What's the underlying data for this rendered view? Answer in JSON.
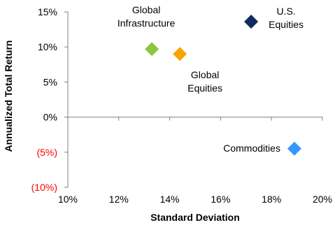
{
  "chart_data": {
    "type": "scatter",
    "xlabel": "Standard Deviation",
    "ylabel": "Annualized Total Return",
    "xlim": [
      0.1,
      0.2
    ],
    "ylim": [
      -0.1,
      0.15
    ],
    "x_ticks": [
      {
        "value": 0.1,
        "label": "10%"
      },
      {
        "value": 0.12,
        "label": "12%"
      },
      {
        "value": 0.14,
        "label": "14%"
      },
      {
        "value": 0.16,
        "label": "16%"
      },
      {
        "value": 0.18,
        "label": "18%"
      },
      {
        "value": 0.2,
        "label": "20%"
      }
    ],
    "y_ticks": [
      {
        "value": 0.15,
        "label": "15%",
        "negative": false
      },
      {
        "value": 0.1,
        "label": "10%",
        "negative": false
      },
      {
        "value": 0.05,
        "label": "5%",
        "negative": false
      },
      {
        "value": 0.0,
        "label": "0%",
        "negative": false
      },
      {
        "value": -0.05,
        "label": "(5%)",
        "negative": true
      },
      {
        "value": -0.1,
        "label": "(10%)",
        "negative": true
      }
    ],
    "negative_label_color": "#ff0000",
    "points": [
      {
        "label_lines": [
          "Global",
          "Infrastructure"
        ],
        "x": 0.133,
        "y": 0.097,
        "color": "#8dc63f",
        "label_pos": "above"
      },
      {
        "label_lines": [
          "Global",
          "Equities"
        ],
        "x": 0.144,
        "y": 0.09,
        "color": "#f7a600",
        "label_pos": "below-right"
      },
      {
        "label_lines": [
          "U.S.",
          "Equities"
        ],
        "x": 0.172,
        "y": 0.136,
        "color": "#0e2a5e",
        "label_pos": "right"
      },
      {
        "label_lines": [
          "Commodities"
        ],
        "x": 0.189,
        "y": -0.045,
        "color": "#3399ff",
        "label_pos": "left"
      }
    ],
    "grid": false,
    "legend": "none",
    "marker": "diamond"
  }
}
